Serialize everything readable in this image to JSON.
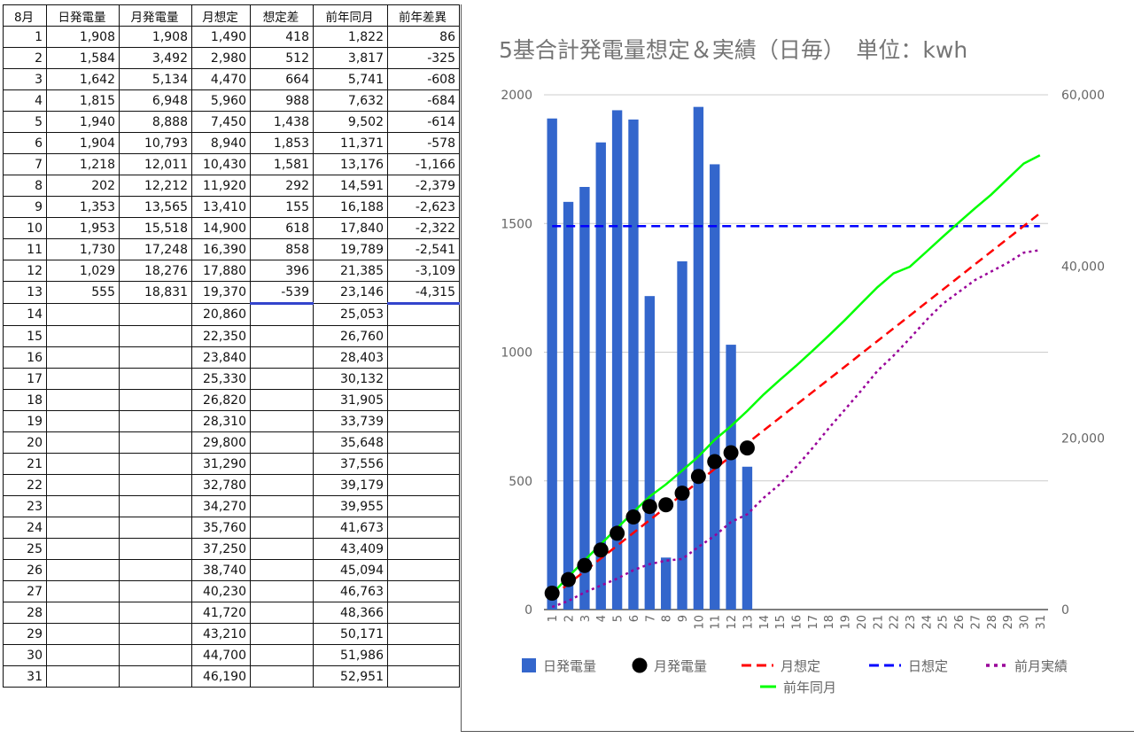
{
  "table": {
    "headers": [
      "8月",
      "日発電量",
      "月発電量",
      "月想定",
      "想定差",
      "前年同月",
      "前年差異"
    ],
    "rows": [
      [
        "1",
        "1,908",
        "1,908",
        "1,490",
        "418",
        "1,822",
        "86"
      ],
      [
        "2",
        "1,584",
        "3,492",
        "2,980",
        "512",
        "3,817",
        "-325"
      ],
      [
        "3",
        "1,642",
        "5,134",
        "4,470",
        "664",
        "5,741",
        "-608"
      ],
      [
        "4",
        "1,815",
        "6,948",
        "5,960",
        "988",
        "7,632",
        "-684"
      ],
      [
        "5",
        "1,940",
        "8,888",
        "7,450",
        "1,438",
        "9,502",
        "-614"
      ],
      [
        "6",
        "1,904",
        "10,793",
        "8,940",
        "1,853",
        "11,371",
        "-578"
      ],
      [
        "7",
        "1,218",
        "12,011",
        "10,430",
        "1,581",
        "13,176",
        "-1,166"
      ],
      [
        "8",
        "202",
        "12,212",
        "11,920",
        "292",
        "14,591",
        "-2,379"
      ],
      [
        "9",
        "1,353",
        "13,565",
        "13,410",
        "155",
        "16,188",
        "-2,623"
      ],
      [
        "10",
        "1,953",
        "15,518",
        "14,900",
        "618",
        "17,840",
        "-2,322"
      ],
      [
        "11",
        "1,730",
        "17,248",
        "16,390",
        "858",
        "19,789",
        "-2,541"
      ],
      [
        "12",
        "1,029",
        "18,276",
        "17,880",
        "396",
        "21,385",
        "-3,109"
      ],
      [
        "13",
        "555",
        "18,831",
        "19,370",
        "-539",
        "23,146",
        "-4,315"
      ],
      [
        "14",
        "",
        "",
        "20,860",
        "",
        "25,053",
        ""
      ],
      [
        "15",
        "",
        "",
        "22,350",
        "",
        "26,760",
        ""
      ],
      [
        "16",
        "",
        "",
        "23,840",
        "",
        "28,403",
        ""
      ],
      [
        "17",
        "",
        "",
        "25,330",
        "",
        "30,132",
        ""
      ],
      [
        "18",
        "",
        "",
        "26,820",
        "",
        "31,905",
        ""
      ],
      [
        "19",
        "",
        "",
        "28,310",
        "",
        "33,739",
        ""
      ],
      [
        "20",
        "",
        "",
        "29,800",
        "",
        "35,648",
        ""
      ],
      [
        "21",
        "",
        "",
        "31,290",
        "",
        "37,556",
        ""
      ],
      [
        "22",
        "",
        "",
        "32,780",
        "",
        "39,179",
        ""
      ],
      [
        "23",
        "",
        "",
        "34,270",
        "",
        "39,955",
        ""
      ],
      [
        "24",
        "",
        "",
        "35,760",
        "",
        "41,673",
        ""
      ],
      [
        "25",
        "",
        "",
        "37,250",
        "",
        "43,409",
        ""
      ],
      [
        "26",
        "",
        "",
        "38,740",
        "",
        "45,094",
        ""
      ],
      [
        "27",
        "",
        "",
        "40,230",
        "",
        "46,763",
        ""
      ],
      [
        "28",
        "",
        "",
        "41,720",
        "",
        "48,366",
        ""
      ],
      [
        "29",
        "",
        "",
        "43,210",
        "",
        "50,171",
        ""
      ],
      [
        "30",
        "",
        "",
        "44,700",
        "",
        "51,986",
        ""
      ],
      [
        "31",
        "",
        "",
        "46,190",
        "",
        "52,951",
        ""
      ]
    ]
  },
  "colors": {
    "positive_diff": "#ff1a1a",
    "negative_diff": "#1a1aff",
    "bar": "#3366cc",
    "monthly_actual": "#000000",
    "monthly_forecast": "#ff0000",
    "daily_forecast": "#0000ff",
    "prev_month": "#990099",
    "prev_year": "#00ff00"
  },
  "chart_data": {
    "type": "bar",
    "title": "5基合計発電量想定＆実績（日毎）　単位：kwh",
    "categories": [
      "1",
      "2",
      "3",
      "4",
      "5",
      "6",
      "7",
      "8",
      "9",
      "10",
      "11",
      "12",
      "13",
      "14",
      "15",
      "16",
      "17",
      "18",
      "19",
      "20",
      "21",
      "22",
      "23",
      "24",
      "25",
      "26",
      "27",
      "28",
      "29",
      "30",
      "31"
    ],
    "y_left": {
      "ylim": [
        0,
        2000
      ],
      "ticks": [
        "0",
        "500",
        "1000",
        "1500",
        "2000"
      ]
    },
    "y_right": {
      "ylim": [
        0,
        60000
      ],
      "ticks": [
        "0",
        "20,000",
        "40,000",
        "60,000"
      ]
    },
    "grid": true,
    "legend_position": "bottom",
    "series": [
      {
        "name": "日発電量",
        "type": "bar",
        "axis": "left",
        "values": [
          1908,
          1584,
          1642,
          1815,
          1940,
          1904,
          1218,
          202,
          1353,
          1953,
          1730,
          1029,
          555,
          null,
          null,
          null,
          null,
          null,
          null,
          null,
          null,
          null,
          null,
          null,
          null,
          null,
          null,
          null,
          null,
          null,
          null
        ]
      },
      {
        "name": "月発電量",
        "type": "scatter",
        "axis": "right",
        "values": [
          1908,
          3492,
          5134,
          6948,
          8888,
          10793,
          12011,
          12212,
          13565,
          15518,
          17248,
          18276,
          18831,
          null,
          null,
          null,
          null,
          null,
          null,
          null,
          null,
          null,
          null,
          null,
          null,
          null,
          null,
          null,
          null,
          null,
          null
        ]
      },
      {
        "name": "月想定",
        "type": "line-dashed",
        "axis": "right",
        "values": [
          1490,
          2980,
          4470,
          5960,
          7450,
          8940,
          10430,
          11920,
          13410,
          14900,
          16390,
          17880,
          19370,
          20860,
          22350,
          23840,
          25330,
          26820,
          28310,
          29800,
          31290,
          32780,
          34270,
          35760,
          37250,
          38740,
          40230,
          41720,
          43210,
          44700,
          46190
        ]
      },
      {
        "name": "日想定",
        "type": "line-dashed",
        "axis": "left",
        "values": [
          1490,
          1490,
          1490,
          1490,
          1490,
          1490,
          1490,
          1490,
          1490,
          1490,
          1490,
          1490,
          1490,
          1490,
          1490,
          1490,
          1490,
          1490,
          1490,
          1490,
          1490,
          1490,
          1490,
          1490,
          1490,
          1490,
          1490,
          1490,
          1490,
          1490,
          1490
        ]
      },
      {
        "name": "前月実績",
        "type": "line-dotted",
        "axis": "right",
        "values": [
          300,
          1000,
          2000,
          2800,
          3600,
          4600,
          5300,
          5700,
          5900,
          7300,
          8600,
          10200,
          11100,
          13000,
          14600,
          16600,
          18800,
          21100,
          23300,
          25500,
          27800,
          29600,
          31600,
          33700,
          35600,
          37000,
          38400,
          39400,
          40400,
          41600,
          41900
        ]
      },
      {
        "name": "前年同月",
        "type": "line",
        "axis": "right",
        "values": [
          1822,
          3817,
          5741,
          7632,
          9502,
          11371,
          13176,
          14591,
          16188,
          17840,
          19789,
          21385,
          23146,
          25053,
          26760,
          28403,
          30132,
          31905,
          33739,
          35648,
          37556,
          39179,
          39955,
          41673,
          43409,
          45094,
          46763,
          48366,
          50171,
          51986,
          52951
        ]
      }
    ]
  }
}
